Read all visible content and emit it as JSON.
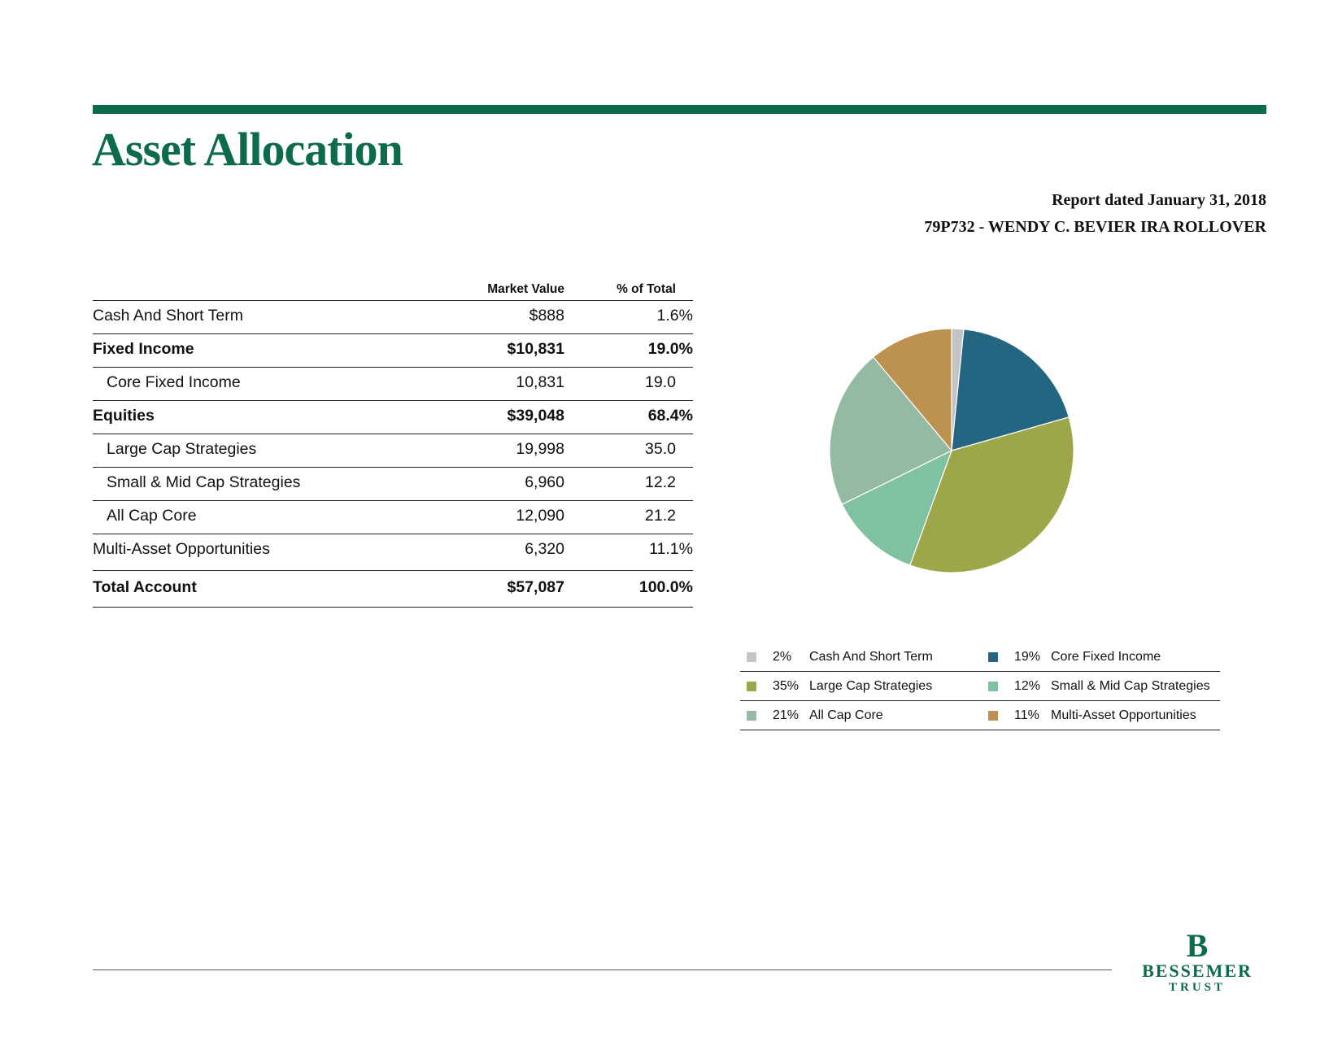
{
  "header": {
    "title": "Asset Allocation",
    "report_date": "Report dated January 31, 2018",
    "account": "79P732 - WENDY C. BEVIER IRA ROLLOVER"
  },
  "table": {
    "columns": {
      "market_value": "Market Value",
      "pct_of_total": "% of Total"
    },
    "rows": [
      {
        "label": "Cash And Short Term",
        "market_value": "$888",
        "pct": "1.6%"
      },
      {
        "label": "Fixed Income",
        "market_value": "$10,831",
        "pct": "19.0%"
      },
      {
        "label": "Core Fixed Income",
        "market_value": "10,831",
        "pct": "19.0"
      },
      {
        "label": "Equities",
        "market_value": "$39,048",
        "pct": "68.4%"
      },
      {
        "label": "Large Cap Strategies",
        "market_value": "19,998",
        "pct": "35.0"
      },
      {
        "label": "Small & Mid Cap Strategies",
        "market_value": "6,960",
        "pct": "12.2"
      },
      {
        "label": "All Cap Core",
        "market_value": "12,090",
        "pct": "21.2"
      },
      {
        "label": "Multi-Asset Opportunities",
        "market_value": "6,320",
        "pct": "11.1%"
      }
    ],
    "total": {
      "label": "Total Account",
      "market_value": "$57,087",
      "pct": "100.0%"
    }
  },
  "chart_data": {
    "type": "pie",
    "slices": [
      {
        "label": "Cash And Short Term",
        "value": 1.6,
        "color": "#c4c4c4"
      },
      {
        "label": "Core Fixed Income",
        "value": 19.0,
        "color": "#246582"
      },
      {
        "label": "Large Cap Strategies",
        "value": 35.0,
        "color": "#9da648"
      },
      {
        "label": "Small & Mid Cap Strategies",
        "value": 12.2,
        "color": "#7fc2a2"
      },
      {
        "label": "All Cap Core",
        "value": 21.2,
        "color": "#95baa4"
      },
      {
        "label": "Multi-Asset Opportunities",
        "value": 11.1,
        "color": "#bd914f"
      }
    ],
    "start_angle": "top",
    "direction": "clockwise",
    "legend": {
      "placement": "bottom",
      "items": [
        {
          "pct": "2%",
          "label": "Cash And Short Term",
          "color": "#c4c4c4"
        },
        {
          "pct": "19%",
          "label": "Core Fixed Income",
          "color": "#246582"
        },
        {
          "pct": "35%",
          "label": "Large Cap Strategies",
          "color": "#9da648"
        },
        {
          "pct": "12%",
          "label": "Small & Mid Cap Strategies",
          "color": "#7fc2a2"
        },
        {
          "pct": "21%",
          "label": "All Cap Core",
          "color": "#95baa4"
        },
        {
          "pct": "11%",
          "label": "Multi-Asset Opportunities",
          "color": "#bd914f"
        }
      ]
    }
  },
  "footer": {
    "logo_mark": "B",
    "logo_word1": "BESSEMER",
    "logo_word2": "TRUST"
  },
  "colors": {
    "brand_green": "#0b6b4b"
  }
}
